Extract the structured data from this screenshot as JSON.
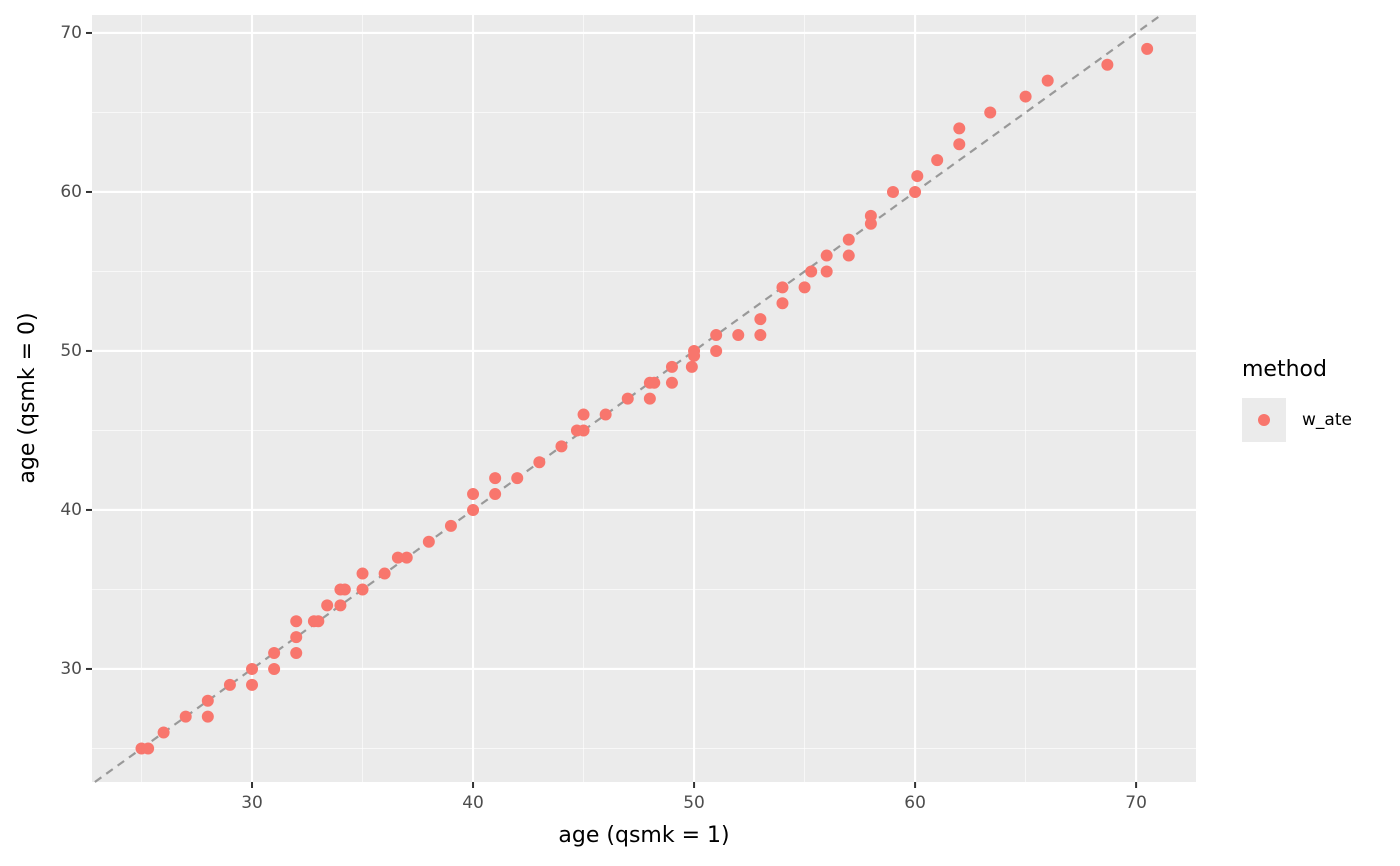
{
  "chart_data": {
    "type": "scatter",
    "x_label": "age (qsmk = 1)",
    "y_label": "age (qsmk = 0)",
    "legend_title": "method",
    "legend_position": "right",
    "xlim": [
      22.76,
      72.71
    ],
    "ylim": [
      22.89,
      71.13
    ],
    "xticks": [
      30,
      40,
      50,
      60,
      70
    ],
    "yticks": [
      30,
      40,
      50,
      60,
      70
    ],
    "x_minor_grid": [
      25,
      35,
      45,
      55,
      65
    ],
    "y_minor_grid": [
      25,
      35,
      45,
      55,
      65
    ],
    "grid": true,
    "reference_line": "identity",
    "series": [
      {
        "name": "w_ate",
        "color": "#F8766D",
        "x": [
          25,
          25.3,
          26,
          27,
          28,
          28,
          29,
          30,
          30,
          31,
          31,
          32,
          32,
          32,
          32.8,
          33,
          33.4,
          34,
          34,
          34.2,
          35,
          35,
          36,
          36.6,
          37,
          38,
          39,
          40,
          40,
          41,
          41,
          42,
          43,
          44,
          44.7,
          45,
          45,
          46,
          47,
          48,
          48,
          48.2,
          49,
          49,
          50,
          50,
          49.9,
          51,
          51,
          52,
          53,
          53,
          54,
          54,
          55,
          55.3,
          56,
          56,
          57,
          57,
          58,
          58,
          59,
          60,
          60.1,
          61,
          62,
          62,
          63.4,
          65,
          66,
          68.7,
          70.5
        ],
        "values": [
          25,
          25,
          26,
          27,
          28,
          27,
          29,
          30,
          29,
          31,
          30,
          33,
          32,
          31,
          33,
          33,
          34,
          35,
          34,
          35,
          36,
          35,
          36,
          37,
          37,
          38,
          39,
          41,
          40,
          42,
          41,
          42,
          43,
          44,
          45,
          46,
          45,
          46,
          47,
          48,
          47,
          48,
          49,
          48,
          50,
          49.7,
          49,
          51,
          50,
          51,
          52,
          51,
          54,
          53,
          54,
          55,
          56,
          55,
          57,
          56,
          58.5,
          58,
          60,
          60,
          61,
          62,
          64,
          63,
          65,
          66,
          67,
          68,
          69
        ]
      }
    ]
  }
}
